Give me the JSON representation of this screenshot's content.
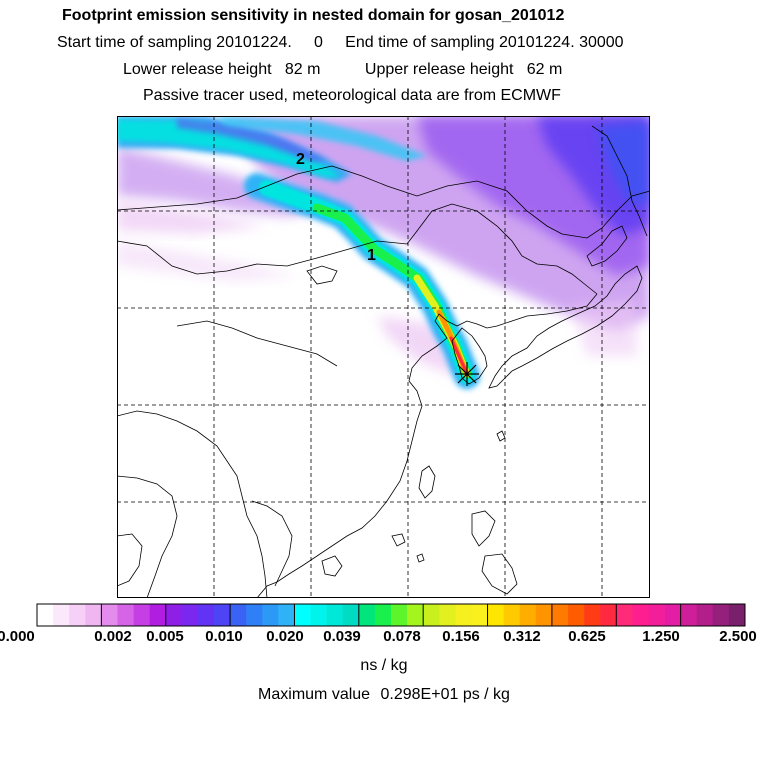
{
  "header": {
    "title": "Footprint emission sensitivity in nested domain for gosan_201012",
    "line2": "Start time of sampling 20101224.     0     End time of sampling 20101224. 30000",
    "line3": "Lower release height   82 m          Upper release height   62 m",
    "line4": "Passive tracer used, meteorological data are from ECMWF"
  },
  "map": {
    "markers": [
      {
        "label": "1"
      },
      {
        "label": "2"
      }
    ],
    "release_site_icon": "star-marker-icon",
    "gridlines": "dashed"
  },
  "colorbar": {
    "ticks": [
      "0.000",
      "0.002",
      "0.005",
      "0.010",
      "0.020",
      "0.039",
      "0.078",
      "0.156",
      "0.312",
      "0.625",
      "1.250",
      "2.500"
    ],
    "unit": "ns / kg",
    "colors": [
      [
        "#ffffff",
        "#fbe8fb",
        "#f6d0f7",
        "#efb6f2"
      ],
      [
        "#e38ceb",
        "#d565e6",
        "#c53fe4",
        "#b11ee2"
      ],
      [
        "#8f1ee6",
        "#7a28f0",
        "#6233f5",
        "#4f43f6"
      ],
      [
        "#3a63f5",
        "#2f7ff6",
        "#2c99f6",
        "#2fb3f6"
      ],
      [
        "#00ffff",
        "#00f4ec",
        "#00e8d8",
        "#00dcc4"
      ],
      [
        "#00e67a",
        "#19f04c",
        "#5cf42a",
        "#a4f41e"
      ],
      [
        "#c8f01e",
        "#e1f01e",
        "#f5f01e",
        "#faf01e"
      ],
      [
        "#ffe600",
        "#ffcb00",
        "#ffae00",
        "#ff9400"
      ],
      [
        "#ff7a00",
        "#ff5c00",
        "#ff3c14",
        "#ff2a40"
      ],
      [
        "#ff2a78",
        "#ff1e90",
        "#f31e9a",
        "#e41ea4"
      ],
      [
        "#cf1e9a",
        "#b21e8a",
        "#95207c",
        "#7a1f6c"
      ]
    ]
  },
  "max_value": {
    "label": "Maximum value",
    "value": "0.298E+01 ps / kg"
  }
}
